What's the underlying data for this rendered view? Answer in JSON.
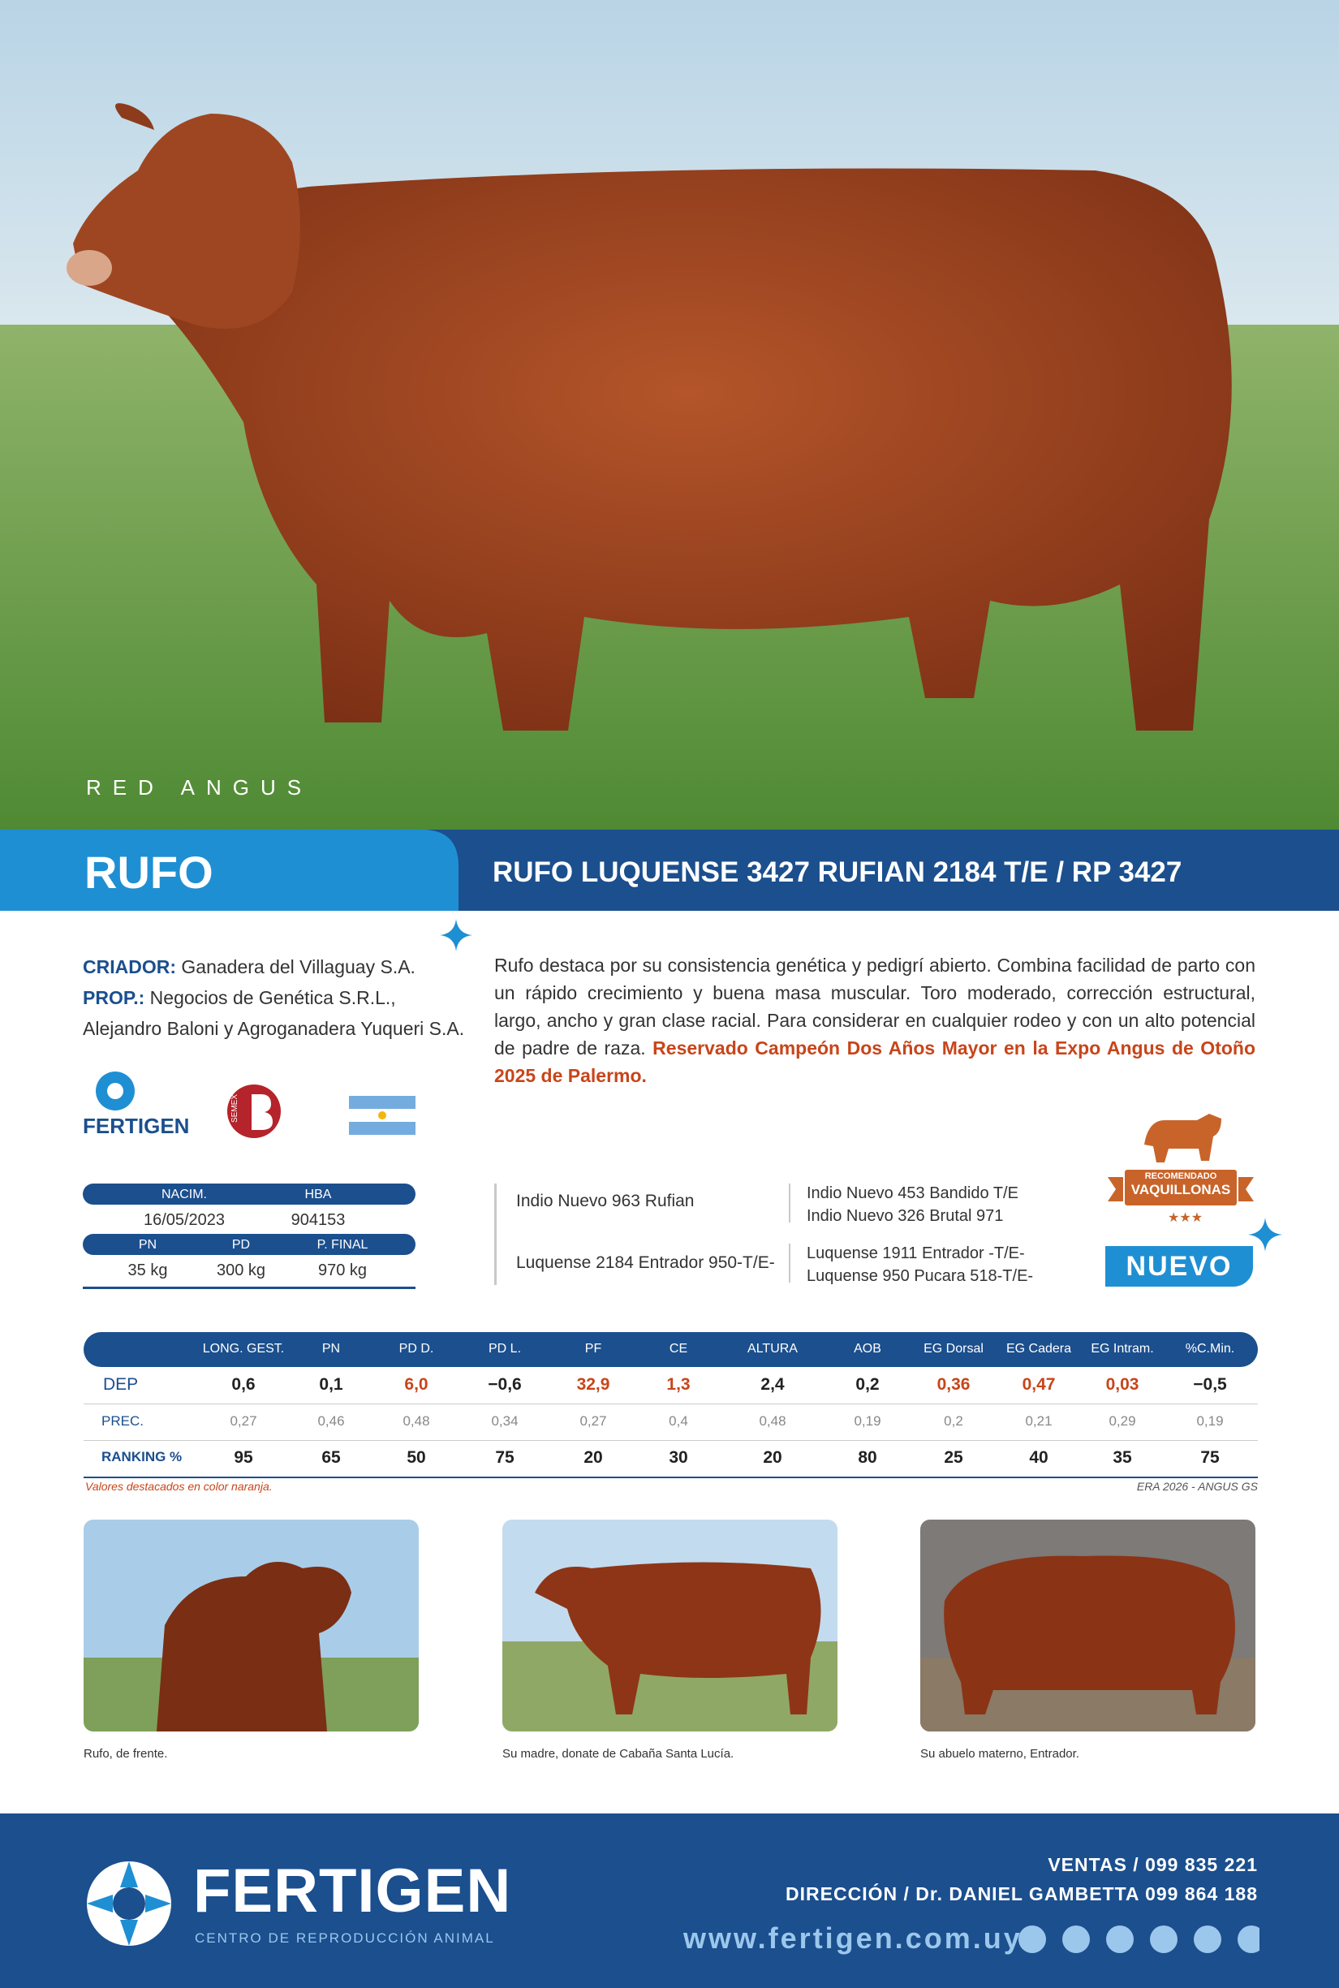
{
  "hero": {
    "breed": "RED ANGUS"
  },
  "banner": {
    "name": "RUFO",
    "full_name": "RUFO LUQUENSE 3427 RUFIAN 2184 T/E / RP 3427"
  },
  "owners": {
    "criador_label": "CRIADOR:",
    "criador": "Ganadera del Villaguay S.A.",
    "prop_label": "PROP.:",
    "prop": "Negocios de Genética S.R.L.,",
    "prop_2": "Alejandro Baloni y Agroganadera Yuqueri S.A."
  },
  "description": {
    "text": "Rufo destaca por su consistencia genética y pedigrí abierto. Combina facilidad de parto con un rápido crecimiento y buena masa muscular. Toro moderado, corrección estructural, largo, ancho y gran clase racial. Para considerar en cualquier rodeo y con un alto potencial de padre de raza.",
    "highlight": "Reservado Campeón Dos Años Mayor en la Expo Angus de Otoño 2025 de Palermo."
  },
  "logos": {
    "fertigen": "FERTIGEN",
    "semex": "SEMEX"
  },
  "info_table": {
    "headers": [
      "NACIM.",
      "HBA"
    ],
    "values": [
      "16/05/2023",
      "904153"
    ],
    "headers_2": [
      "PN",
      "PD",
      "P. FINAL"
    ],
    "values_2": [
      "35 kg",
      "300 kg",
      "970 kg"
    ]
  },
  "pedigree": {
    "sire": "Indio Nuevo 963 Rufian",
    "sire_sire": "Indio Nuevo 453 Bandido T/E",
    "sire_dam": "Indio Nuevo 326 Brutal 971",
    "dam": "Luquense 2184 Entrador 950-T/E-",
    "dam_sire": "Luquense 1911 Entrador -T/E-",
    "dam_dam": "Luquense 950 Pucara 518-T/E-"
  },
  "badge": {
    "line1": "RECOMENDADO",
    "line2": "VAQUILLONAS",
    "tag": "NUEVO"
  },
  "dep_table": {
    "row_labels": [
      "DEP",
      "PREC.",
      "RANKING %"
    ],
    "columns": [
      {
        "label": "LONG. GEST.",
        "dep": "0,6",
        "prec": "0,27",
        "ranking": "95",
        "highlight": false
      },
      {
        "label": "PN",
        "dep": "0,1",
        "prec": "0,46",
        "ranking": "65",
        "highlight": false
      },
      {
        "label": "PD D.",
        "dep": "6,0",
        "prec": "0,48",
        "ranking": "50",
        "highlight": true
      },
      {
        "label": "PD L.",
        "dep": "−0,6",
        "prec": "0,34",
        "ranking": "75",
        "highlight": false
      },
      {
        "label": "PF",
        "dep": "32,9",
        "prec": "0,27",
        "ranking": "20",
        "highlight": true
      },
      {
        "label": "CE",
        "dep": "1,3",
        "prec": "0,4",
        "ranking": "30",
        "highlight": true
      },
      {
        "label": "ALTURA",
        "dep": "2,4",
        "prec": "0,48",
        "ranking": "20",
        "highlight": false
      },
      {
        "label": "AOB",
        "dep": "0,2",
        "prec": "0,19",
        "ranking": "80",
        "highlight": false
      },
      {
        "label": "EG Dorsal",
        "dep": "0,36",
        "prec": "0,2",
        "ranking": "25",
        "highlight": true
      },
      {
        "label": "EG Cadera",
        "dep": "0,47",
        "prec": "0,21",
        "ranking": "40",
        "highlight": true
      },
      {
        "label": "EG Intram.",
        "dep": "0,03",
        "prec": "0,29",
        "ranking": "35",
        "highlight": true
      },
      {
        "label": "%C.Min.",
        "dep": "−0,5",
        "prec": "0,19",
        "ranking": "75",
        "highlight": false
      }
    ]
  },
  "notes": {
    "left": "Valores destacados en color naranja.",
    "right": "ERA 2026 - ANGUS GS"
  },
  "photos": [
    {
      "caption": "Rufo, de frente."
    },
    {
      "caption": "Su madre, donate de Cabaña Santa Lucía."
    },
    {
      "caption": "Su abuelo materno, Entrador."
    }
  ],
  "footer": {
    "brand": "FERTIGEN",
    "tagline": "CENTRO DE REPRODUCCIÓN ANIMAL",
    "ventas": "VENTAS / 099 835 221",
    "direccion": "DIRECCIÓN / Dr. DANIEL GAMBETTA 099 864 188",
    "web": "www.fertigen.com.uy"
  }
}
